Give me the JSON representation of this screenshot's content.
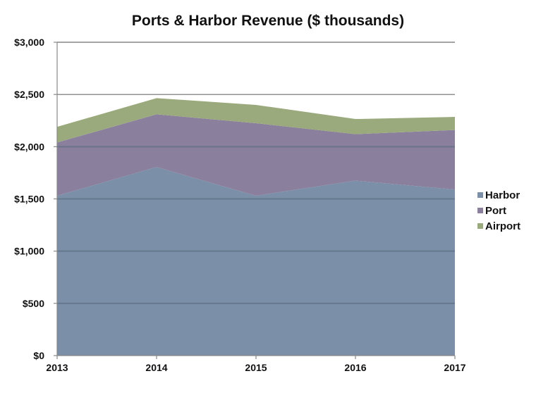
{
  "chart_data": {
    "type": "area",
    "stacked": true,
    "title": "Ports & Harbor Revenue ($ thousands)",
    "xlabel": "",
    "ylabel": "",
    "categories": [
      "2013",
      "2014",
      "2015",
      "2016",
      "2017"
    ],
    "ylim": [
      0,
      3000
    ],
    "yticks": [
      0,
      500,
      1000,
      1500,
      2000,
      2500,
      3000
    ],
    "ytick_labels": [
      "$0",
      "$500",
      "$1,000",
      "$1,500",
      "$2,000",
      "$2,500",
      "$3,000"
    ],
    "grid": true,
    "legend_position": "right",
    "series": [
      {
        "name": "Harbor",
        "color": "#7b8fa8",
        "values": [
          1530,
          1805,
          1530,
          1675,
          1590
        ]
      },
      {
        "name": "Port",
        "color": "#8a7f9c",
        "values": [
          510,
          505,
          695,
          445,
          570
        ]
      },
      {
        "name": "Airport",
        "color": "#9aaa7c",
        "values": [
          150,
          155,
          175,
          145,
          125
        ]
      }
    ]
  }
}
